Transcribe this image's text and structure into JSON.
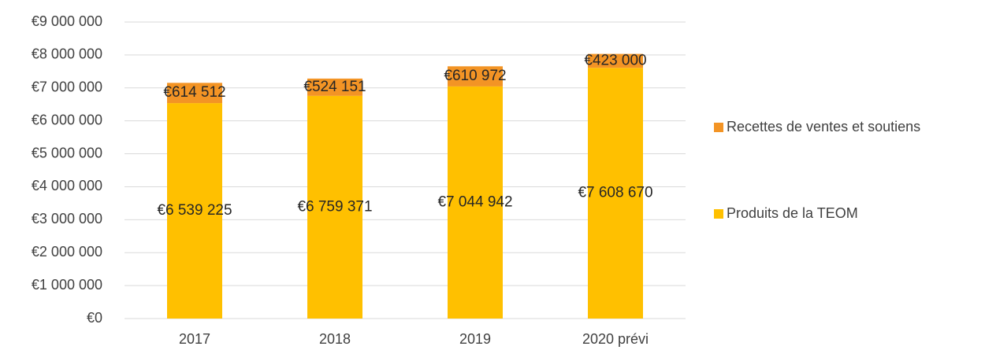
{
  "chart_data": {
    "type": "stacked_bar",
    "categories": [
      "2017",
      "2018",
      "2019",
      "2020 prévi"
    ],
    "series": [
      {
        "name": "Produits de la TEOM",
        "color": "#ffc000",
        "values": [
          6539225,
          6759371,
          7044942,
          7608670
        ],
        "value_labels": [
          "€6 539 225",
          "€6 759 371",
          "€7 044 942",
          "€7 608 670"
        ]
      },
      {
        "name": "Recettes de ventes et soutiens",
        "color": "#f39425",
        "values": [
          614512,
          524151,
          610972,
          423000
        ],
        "value_labels": [
          "€614 512",
          "€524 151",
          "€610 972",
          "€423 000"
        ]
      }
    ],
    "ylim": [
      0,
      9000000
    ],
    "yticks": [
      {
        "value": 0,
        "label": "€0"
      },
      {
        "value": 1000000,
        "label": "€1 000 000"
      },
      {
        "value": 2000000,
        "label": "€2 000 000"
      },
      {
        "value": 3000000,
        "label": "€3 000 000"
      },
      {
        "value": 4000000,
        "label": "€4 000 000"
      },
      {
        "value": 5000000,
        "label": "€5 000 000"
      },
      {
        "value": 6000000,
        "label": "€6 000 000"
      },
      {
        "value": 7000000,
        "label": "€7 000 000"
      },
      {
        "value": 8000000,
        "label": "€8 000 000"
      },
      {
        "value": 9000000,
        "label": "€9 000 000"
      }
    ],
    "grid": true,
    "legend": "right"
  }
}
